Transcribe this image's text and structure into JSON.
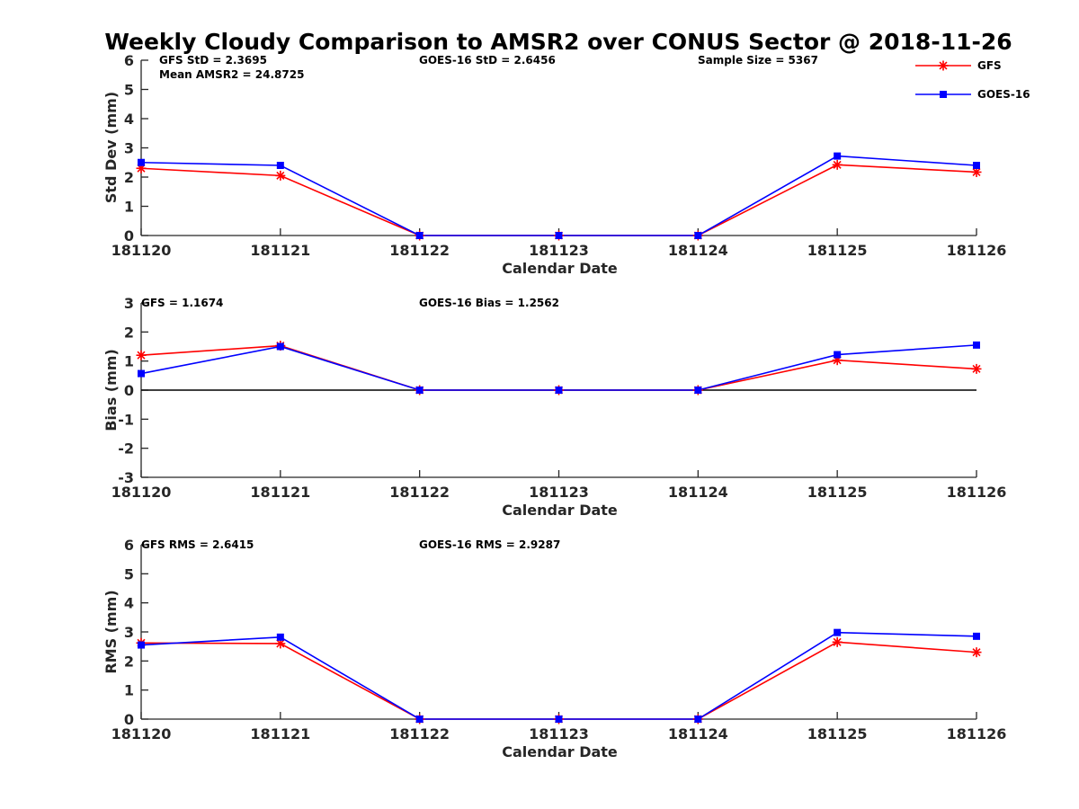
{
  "figure_title": "Weekly Cloudy Comparison to AMSR2 over CONUS Sector @ 2018-11-26",
  "legend": [
    {
      "name": "GFS",
      "color": "#ff0000",
      "marker": "asterisk"
    },
    {
      "name": "GOES-16",
      "color": "#0000ff",
      "marker": "square"
    }
  ],
  "chart_data": [
    {
      "type": "line",
      "title": "Weekly Cloudy Comparison to AMSR2 over CONUS Sector @ 2018-11-26",
      "xlabel": "Calendar Date",
      "ylabel": "Std Dev (mm)",
      "categories": [
        "181120",
        "181121",
        "181122",
        "181123",
        "181124",
        "181125",
        "181126"
      ],
      "ylim": [
        0,
        6
      ],
      "yticks": [
        "0",
        "1",
        "2",
        "3",
        "4",
        "5",
        "6"
      ],
      "zero_line": false,
      "stats": [
        "GFS StD = 2.3695",
        "Mean AMSR2 = 24.8725",
        "GOES-16 StD = 2.6456",
        "Sample Size = 5367"
      ],
      "series": [
        {
          "name": "GFS",
          "color": "#ff0000",
          "marker": "asterisk",
          "values": [
            2.3,
            2.05,
            0,
            0,
            0,
            2.42,
            2.17
          ]
        },
        {
          "name": "GOES-16",
          "color": "#0000ff",
          "marker": "square",
          "values": [
            2.5,
            2.4,
            0,
            0,
            0,
            2.72,
            2.4
          ]
        }
      ]
    },
    {
      "type": "line",
      "xlabel": "Calendar Date",
      "ylabel": "Bias (mm)",
      "categories": [
        "181120",
        "181121",
        "181122",
        "181123",
        "181124",
        "181125",
        "181126"
      ],
      "ylim": [
        -3,
        3
      ],
      "yticks": [
        "-3",
        "-2",
        "-1",
        "0",
        "1",
        "2",
        "3"
      ],
      "zero_line": true,
      "stats": [
        "GFS = 1.1674",
        "GOES-16 Bias  = 1.2562"
      ],
      "series": [
        {
          "name": "GFS",
          "color": "#ff0000",
          "marker": "asterisk",
          "values": [
            1.2,
            1.53,
            0,
            0,
            0,
            1.03,
            0.73
          ]
        },
        {
          "name": "GOES-16",
          "color": "#0000ff",
          "marker": "square",
          "values": [
            0.57,
            1.5,
            0,
            0,
            0,
            1.22,
            1.55
          ]
        }
      ]
    },
    {
      "type": "line",
      "xlabel": "Calendar Date",
      "ylabel": "RMS (mm)",
      "categories": [
        "181120",
        "181121",
        "181122",
        "181123",
        "181124",
        "181125",
        "181126"
      ],
      "ylim": [
        0,
        6
      ],
      "yticks": [
        "0",
        "1",
        "2",
        "3",
        "4",
        "5",
        "6"
      ],
      "zero_line": false,
      "stats": [
        "GFS RMS = 2.6415",
        "GOES-16 RMS = 2.9287"
      ],
      "series": [
        {
          "name": "GFS",
          "color": "#ff0000",
          "marker": "asterisk",
          "values": [
            2.62,
            2.6,
            0,
            0,
            0,
            2.65,
            2.3
          ]
        },
        {
          "name": "GOES-16",
          "color": "#0000ff",
          "marker": "square",
          "values": [
            2.55,
            2.82,
            0,
            0,
            0,
            2.98,
            2.85
          ]
        }
      ]
    }
  ]
}
